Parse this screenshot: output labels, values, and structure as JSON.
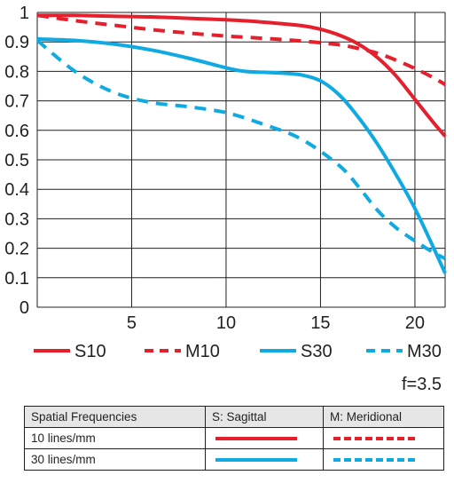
{
  "chart_data": {
    "type": "line",
    "x_range": [
      0,
      21.6
    ],
    "y_range": [
      0,
      1
    ],
    "x_ticks": [
      "5",
      "10",
      "15",
      "20"
    ],
    "x_tick_values": [
      5,
      10,
      15,
      20
    ],
    "y_ticks": [
      "0",
      "0.1",
      "0.2",
      "0.3",
      "0.4",
      "0.5",
      "0.6",
      "0.7",
      "0.8",
      "0.9",
      "1"
    ],
    "y_tick_values": [
      0,
      0.1,
      0.2,
      0.3,
      0.4,
      0.5,
      0.6,
      0.7,
      0.8,
      0.9,
      1.0
    ],
    "grid": true,
    "legend_position": "bottom",
    "series": [
      {
        "name": "S10",
        "color": "#e51f2b",
        "dashed": false,
        "x": [
          0,
          2,
          4,
          6,
          8,
          10,
          12,
          14,
          15,
          16,
          17,
          18,
          19,
          20,
          21,
          21.6
        ],
        "y": [
          0.99,
          0.99,
          0.987,
          0.985,
          0.98,
          0.975,
          0.967,
          0.955,
          0.943,
          0.923,
          0.893,
          0.848,
          0.785,
          0.705,
          0.625,
          0.58
        ]
      },
      {
        "name": "M10",
        "color": "#e51f2b",
        "dashed": true,
        "x": [
          0,
          2,
          4,
          6,
          8,
          10,
          12,
          14,
          16,
          17,
          18,
          19,
          20,
          21,
          21.6
        ],
        "y": [
          0.99,
          0.972,
          0.957,
          0.942,
          0.93,
          0.92,
          0.912,
          0.903,
          0.89,
          0.878,
          0.862,
          0.838,
          0.81,
          0.778,
          0.755
        ]
      },
      {
        "name": "S30",
        "color": "#10aae3",
        "dashed": false,
        "x": [
          0,
          2,
          4,
          6,
          8,
          10,
          11,
          12,
          13,
          14,
          15,
          16,
          17,
          18,
          19,
          20,
          21,
          21.6
        ],
        "y": [
          0.91,
          0.905,
          0.893,
          0.873,
          0.845,
          0.812,
          0.8,
          0.797,
          0.794,
          0.788,
          0.768,
          0.72,
          0.645,
          0.555,
          0.45,
          0.335,
          0.2,
          0.115
        ]
      },
      {
        "name": "M30",
        "color": "#10aae3",
        "dashed": true,
        "x": [
          0,
          2,
          4,
          6,
          8,
          10,
          12,
          14,
          16,
          17,
          18,
          19,
          20,
          21,
          21.6
        ],
        "y": [
          0.905,
          0.8,
          0.73,
          0.695,
          0.68,
          0.66,
          0.62,
          0.57,
          0.48,
          0.41,
          0.33,
          0.27,
          0.225,
          0.185,
          0.165
        ]
      }
    ]
  },
  "aperture_label": "f=3.5",
  "key_table": {
    "header": [
      "Spatial Frequencies",
      "S: Sagittal",
      "M: Meridional"
    ],
    "rows": [
      {
        "label": "10 lines/mm",
        "color": "#e51f2b"
      },
      {
        "label": "30 lines/mm",
        "color": "#10aae3"
      }
    ]
  }
}
